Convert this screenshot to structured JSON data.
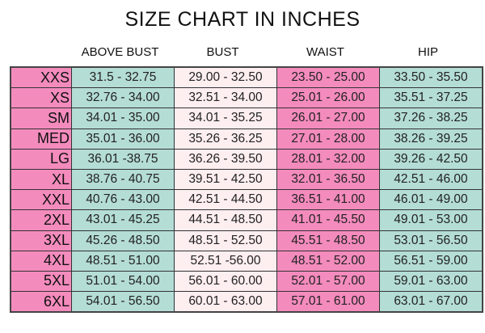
{
  "title": "SIZE CHART IN INCHES",
  "colors": {
    "size_col": "#f48bbd",
    "above_bust": "#b4ddd6",
    "bust": "#fdeef0",
    "waist": "#f48bbd",
    "hip": "#b4ddd6"
  },
  "columns": [
    "ABOVE BUST",
    "BUST",
    "WAIST",
    "HIP"
  ],
  "rows": [
    {
      "size": "XXS",
      "values": [
        "31.5 - 32.75",
        "29.00 - 32.50",
        "23.50 - 25.00",
        "33.50 - 35.50"
      ]
    },
    {
      "size": "XS",
      "values": [
        "32.76 - 34.00",
        "32.51 - 34.00",
        "25.01 - 26.00",
        "35.51 - 37.25"
      ]
    },
    {
      "size": "SM",
      "values": [
        "34.01 - 35.00",
        "34.01 - 35.25",
        "26.01 - 27.00",
        "37.26 - 38.25"
      ]
    },
    {
      "size": "MED",
      "values": [
        "35.01 - 36.00",
        "35.26 - 36.25",
        "27.01 - 28.00",
        "38.26 - 39.25"
      ]
    },
    {
      "size": "LG",
      "values": [
        "36.01 -38.75",
        "36.26 - 39.50",
        "28.01 - 32.00",
        "39.26 - 42.50"
      ]
    },
    {
      "size": "XL",
      "values": [
        "38.76 - 40.75",
        "39.51 - 42.50",
        "32.01 - 36.50",
        "42.51 - 46.00"
      ]
    },
    {
      "size": "XXL",
      "values": [
        "40.76 - 43.00",
        "42.51 - 44.50",
        "36.51 - 41.00",
        "46.01 - 49.00"
      ]
    },
    {
      "size": "2XL",
      "values": [
        "43.01 - 45.25",
        "44.51 - 48.50",
        "41.01 - 45.50",
        "49.01 - 53.00"
      ]
    },
    {
      "size": "3XL",
      "values": [
        "45.26 - 48.50",
        "48.51 - 52.50",
        "45.51 - 48.50",
        "53.01 - 56.50"
      ]
    },
    {
      "size": "4XL",
      "values": [
        "48.51 - 51.00",
        "52.51 -56.00",
        "48.51 - 52.00",
        "56.51 - 59.00"
      ]
    },
    {
      "size": "5XL",
      "values": [
        "51.01 - 54.00",
        "56.01 - 60.00",
        "52.01 - 57.00",
        "59.01 - 63.00"
      ]
    },
    {
      "size": "6XL",
      "values": [
        "54.01 - 56.50",
        "60.01 - 63.00",
        "57.01 - 61.00",
        "63.01 - 67.00"
      ]
    }
  ]
}
